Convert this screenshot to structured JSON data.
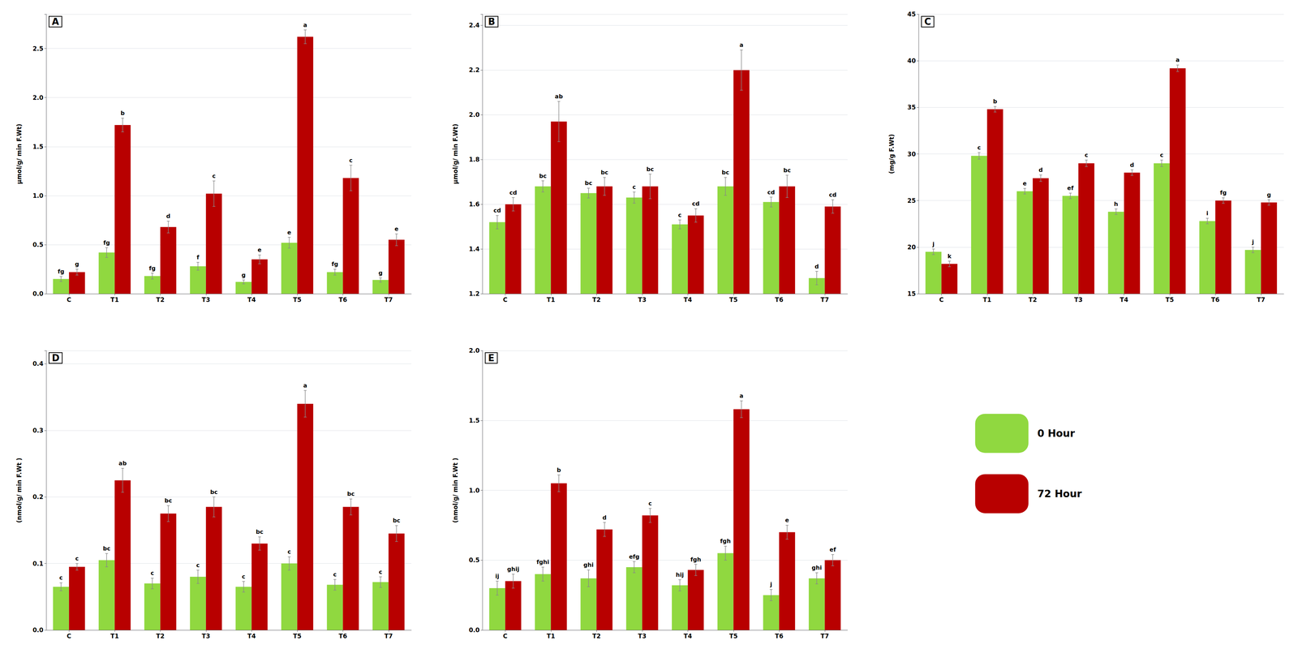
{
  "chart_data": [
    {
      "type": "bar",
      "title": "A",
      "categories": [
        "C",
        "T1",
        "T2",
        "T3",
        "T4",
        "T5",
        "T6",
        "T7"
      ],
      "ylabel": "μmol/g/ min F.Wt)",
      "ylim": [
        0,
        2.85
      ],
      "yticks": [
        {
          "value": 0,
          "label": "0.0"
        },
        0.5,
        {
          "value": 1,
          "label": "1.0"
        },
        1.5,
        {
          "value": 2,
          "label": "2.0"
        },
        2.5
      ],
      "grid": true,
      "series": [
        {
          "name": "0 Hour",
          "color": "#90D840",
          "values": [
            0.15,
            0.42,
            0.18,
            0.28,
            0.12,
            0.52,
            0.22,
            0.14
          ],
          "errors": [
            0.025,
            0.05,
            0.03,
            0.04,
            0.02,
            0.055,
            0.03,
            0.022
          ],
          "annotations": [
            "fg",
            "fg",
            "fg",
            "f",
            "g",
            "e",
            "fg",
            "g"
          ]
        },
        {
          "name": "72 Hour",
          "color": "#B80000",
          "values": [
            0.22,
            1.72,
            0.68,
            1.02,
            0.35,
            2.62,
            1.18,
            0.55
          ],
          "errors": [
            0.03,
            0.07,
            0.06,
            0.13,
            0.045,
            0.07,
            0.13,
            0.06
          ],
          "annotations": [
            "g",
            "b",
            "d",
            "c",
            "e",
            "a",
            "c",
            "e"
          ]
        }
      ]
    },
    {
      "type": "bar",
      "title": "B",
      "categories": [
        "C",
        "T1",
        "T2",
        "T3",
        "T4",
        "T5",
        "T6",
        "T7"
      ],
      "ylabel": "μmol/g/ min F.Wt)",
      "ylim": [
        1.2,
        2.45
      ],
      "yticks": [
        1.2,
        1.4,
        1.6,
        1.8,
        {
          "value": 2,
          "label": "2.0"
        },
        2.2,
        2.4
      ],
      "grid": true,
      "series": [
        {
          "name": "0 Hour",
          "color": "#90D840",
          "values": [
            1.52,
            1.68,
            1.65,
            1.63,
            1.51,
            1.68,
            1.61,
            1.27
          ],
          "errors": [
            0.03,
            0.025,
            0.022,
            0.025,
            0.02,
            0.04,
            0.022,
            0.03
          ],
          "annotations": [
            "cd",
            "bc",
            "bc",
            "c",
            "c",
            "bc",
            "cd",
            "d"
          ]
        },
        {
          "name": "72 Hour",
          "color": "#B80000",
          "values": [
            1.6,
            1.97,
            1.68,
            1.68,
            1.55,
            2.2,
            1.68,
            1.59
          ],
          "errors": [
            0.03,
            0.09,
            0.04,
            0.055,
            0.03,
            0.09,
            0.05,
            0.03
          ],
          "annotations": [
            "cd",
            "ab",
            "bc",
            "bc",
            "cd",
            "a",
            "bc",
            "cd"
          ]
        }
      ]
    },
    {
      "type": "bar",
      "title": "C",
      "categories": [
        "C",
        "T1",
        "T2",
        "T3",
        "T4",
        "T5",
        "T6",
        "T7"
      ],
      "ylabel": "(mg/g F.Wt)",
      "ylim": [
        15,
        45
      ],
      "yticks": [
        15,
        20,
        25,
        30,
        35,
        40,
        45
      ],
      "grid": true,
      "series": [
        {
          "name": "0 Hour",
          "color": "#90D840",
          "values": [
            19.5,
            29.8,
            26.0,
            25.5,
            23.8,
            29.0,
            22.8,
            19.7
          ],
          "errors": [
            0.3,
            0.35,
            0.3,
            0.3,
            0.3,
            0.35,
            0.3,
            0.3
          ],
          "annotations": [
            "j",
            "c",
            "e",
            "ef",
            "h",
            "c",
            "i",
            "j"
          ]
        },
        {
          "name": "72 Hour",
          "color": "#B80000",
          "values": [
            18.2,
            34.8,
            27.4,
            29.0,
            28.0,
            39.2,
            25.0,
            24.8
          ],
          "errors": [
            0.3,
            0.3,
            0.35,
            0.35,
            0.3,
            0.35,
            0.3,
            0.3
          ],
          "annotations": [
            "k",
            "b",
            "d",
            "c",
            "d",
            "a",
            "fg",
            "g"
          ]
        }
      ]
    },
    {
      "type": "bar",
      "title": "D",
      "categories": [
        "C",
        "T1",
        "T2",
        "T3",
        "T4",
        "T5",
        "T6",
        "T7"
      ],
      "ylabel": "(nmol/g/ min F.Wt )",
      "ylim": [
        0,
        0.42
      ],
      "yticks": [
        {
          "value": 0,
          "label": "0.0"
        },
        0.1,
        0.2,
        0.3,
        0.4
      ],
      "grid": true,
      "series": [
        {
          "name": "0 Hour",
          "color": "#90D840",
          "values": [
            0.065,
            0.105,
            0.07,
            0.08,
            0.065,
            0.1,
            0.068,
            0.072
          ],
          "errors": [
            0.006,
            0.01,
            0.008,
            0.01,
            0.008,
            0.01,
            0.008,
            0.008
          ],
          "annotations": [
            "c",
            "bc",
            "c",
            "c",
            "c",
            "c",
            "c",
            "c"
          ]
        },
        {
          "name": "72 Hour",
          "color": "#B80000",
          "values": [
            0.095,
            0.225,
            0.175,
            0.185,
            0.13,
            0.34,
            0.185,
            0.145
          ],
          "errors": [
            0.005,
            0.018,
            0.012,
            0.015,
            0.01,
            0.02,
            0.012,
            0.012
          ],
          "annotations": [
            "c",
            "ab",
            "bc",
            "bc",
            "bc",
            "a",
            "bc",
            "bc"
          ]
        }
      ]
    },
    {
      "type": "bar",
      "title": "E",
      "categories": [
        "C",
        "T1",
        "T2",
        "T3",
        "T4",
        "T5",
        "T6",
        "T7"
      ],
      "ylabel": "(nmol/g/ min F.Wt )",
      "ylim": [
        0,
        2.0
      ],
      "yticks": [
        {
          "value": 0,
          "label": "0.0"
        },
        0.5,
        {
          "value": 1,
          "label": "1.0"
        },
        1.5,
        {
          "value": 2,
          "label": "2.0"
        }
      ],
      "grid": true,
      "series": [
        {
          "name": "0 Hour",
          "color": "#90D840",
          "values": [
            0.3,
            0.4,
            0.37,
            0.45,
            0.32,
            0.55,
            0.25,
            0.37
          ],
          "errors": [
            0.05,
            0.05,
            0.06,
            0.04,
            0.04,
            0.05,
            0.04,
            0.04
          ],
          "annotations": [
            "ij",
            "fghi",
            "ghi",
            "efg",
            "hij",
            "fgh",
            "j",
            "ghi"
          ]
        },
        {
          "name": "72 Hour",
          "color": "#B80000",
          "values": [
            0.35,
            1.05,
            0.72,
            0.82,
            0.43,
            1.58,
            0.7,
            0.5
          ],
          "errors": [
            0.05,
            0.06,
            0.05,
            0.05,
            0.04,
            0.06,
            0.05,
            0.04
          ],
          "annotations": [
            "ghij",
            "b",
            "d",
            "c",
            "fgh",
            "a",
            "e",
            "ef"
          ]
        }
      ]
    }
  ]
}
